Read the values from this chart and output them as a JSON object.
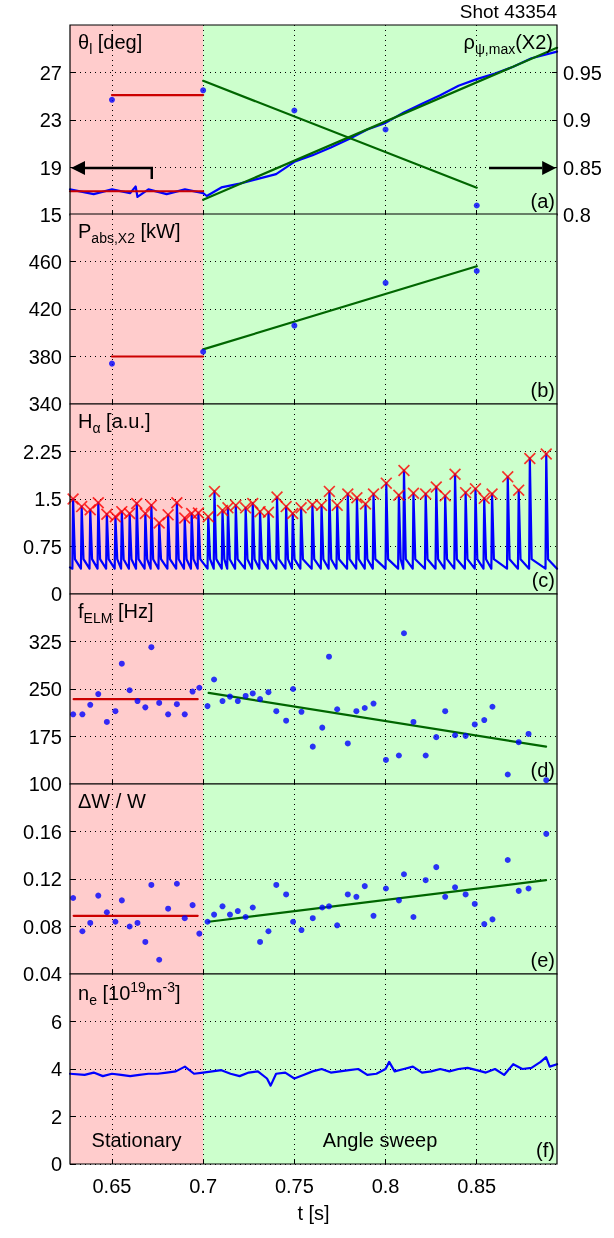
{
  "chart_data": [
    {
      "type": "line",
      "title": "Shot 43354",
      "ylabel": "θ$_{l}$ [deg]",
      "y2label": "ρ$_{ψ,max}$(X2)",
      "xlim": [
        0.627,
        0.894
      ],
      "xticks": [
        0.65,
        0.7,
        0.75,
        0.8,
        0.85
      ],
      "ylim": [
        15,
        31
      ],
      "yticks": [
        15,
        19,
        23,
        27
      ],
      "y2lim": [
        0.8,
        1.0
      ],
      "y2ticks": [
        0.8,
        0.85,
        0.9,
        0.95
      ],
      "grid": true,
      "tick_labels": "y",
      "annotations": [
        "(a)"
      ],
      "bands": [
        {
          "axis": "x",
          "from": 0.627,
          "to": 0.7,
          "color": "#ffcccc"
        },
        {
          "axis": "x",
          "from": 0.7,
          "to": 0.894,
          "color": "#ccffcc"
        }
      ],
      "series": [
        {
          "type": "line",
          "axis": "y2",
          "color": "#0000ff",
          "x": [
            0.627,
            0.64,
            0.65,
            0.66,
            0.663,
            0.664,
            0.67,
            0.68,
            0.69,
            0.7,
            0.702,
            0.71,
            0.72,
            0.73,
            0.74,
            0.75,
            0.76,
            0.77,
            0.78,
            0.79,
            0.8,
            0.81,
            0.82,
            0.83,
            0.84,
            0.85,
            0.86,
            0.87,
            0.88,
            0.894
          ],
          "values": [
            0.827,
            0.822,
            0.827,
            0.823,
            0.83,
            0.819,
            0.827,
            0.822,
            0.827,
            0.823,
            0.82,
            0.829,
            0.833,
            0.838,
            0.843,
            0.856,
            0.863,
            0.871,
            0.88,
            0.89,
            0.897,
            0.908,
            0.917,
            0.926,
            0.936,
            0.943,
            0.949,
            0.956,
            0.965,
            0.972
          ]
        },
        {
          "type": "line",
          "axis": "y2",
          "color": "#cc0000",
          "x": [
            0.627,
            0.7
          ],
          "values": [
            0.825,
            0.825
          ]
        },
        {
          "type": "line",
          "axis": "y2",
          "color": "#006600",
          "x": [
            0.7,
            0.894
          ],
          "values": [
            0.816,
            0.976
          ]
        },
        {
          "type": "line",
          "color": "#cc0000",
          "x": [
            0.65,
            0.7
          ],
          "values": [
            25.1,
            25.1
          ]
        },
        {
          "type": "line",
          "color": "#006600",
          "x": [
            0.7,
            0.85
          ],
          "values": [
            26.3,
            17.3
          ]
        },
        {
          "type": "scatter",
          "marker": "circle",
          "color": "#0000ff",
          "x": [
            0.65,
            0.7,
            0.75,
            0.8,
            0.85
          ],
          "values": [
            24.7,
            25.5,
            23.8,
            22.2,
            15.8
          ]
        }
      ]
    },
    {
      "type": "line",
      "ylabel": "P$_{abs,X2}$ [kW]",
      "xlim": [
        0.627,
        0.894
      ],
      "xticks": [
        0.65,
        0.7,
        0.75,
        0.8,
        0.85
      ],
      "ylim": [
        340,
        500
      ],
      "yticks": [
        340,
        380,
        420,
        460
      ],
      "grid": true,
      "tick_labels": "y",
      "annotations": [
        "(b)"
      ],
      "bands": [
        {
          "axis": "x",
          "from": 0.627,
          "to": 0.7,
          "color": "#ffcccc"
        },
        {
          "axis": "x",
          "from": 0.7,
          "to": 0.894,
          "color": "#ccffcc"
        }
      ],
      "series": [
        {
          "type": "line",
          "color": "#cc0000",
          "x": [
            0.65,
            0.7
          ],
          "values": [
            380,
            380
          ]
        },
        {
          "type": "line",
          "color": "#006600",
          "x": [
            0.7,
            0.85
          ],
          "values": [
            386,
            456
          ]
        },
        {
          "type": "scatter",
          "marker": "circle",
          "color": "#0000ff",
          "x": [
            0.65,
            0.7,
            0.75,
            0.8,
            0.85
          ],
          "values": [
            374,
            384,
            406,
            442,
            452
          ]
        }
      ]
    },
    {
      "type": "line",
      "ylabel": "H$_{α}$ [a.u.]",
      "xlim": [
        0.627,
        0.894
      ],
      "xticks": [
        0.65,
        0.7,
        0.75,
        0.8,
        0.85
      ],
      "ylim": [
        0,
        3
      ],
      "yticks": [
        0,
        0.75,
        1.5,
        2.25
      ],
      "grid": true,
      "tick_labels": "y",
      "annotations": [
        "(c)"
      ],
      "bands": [
        {
          "axis": "x",
          "from": 0.627,
          "to": 0.7,
          "color": "#ffcccc"
        },
        {
          "axis": "x",
          "from": 0.7,
          "to": 0.894,
          "color": "#ccffcc"
        }
      ],
      "series": [
        {
          "type": "line",
          "color": "#0000ff",
          "x": [
            0.627,
            0.6283,
            0.6287,
            0.6297,
            0.633,
            0.6334,
            0.6344,
            0.6377,
            0.6381,
            0.6391,
            0.6421,
            0.6425,
            0.6435,
            0.6468,
            0.6472,
            0.6482,
            0.6515,
            0.6519,
            0.6529,
            0.655,
            0.6554,
            0.6564,
            0.6593,
            0.6597,
            0.6607,
            0.6632,
            0.6636,
            0.6646,
            0.6679,
            0.6683,
            0.6693,
            0.6712,
            0.6716,
            0.6726,
            0.6755,
            0.6759,
            0.6769,
            0.6804,
            0.6808,
            0.6818,
            0.6852,
            0.6856,
            0.6866,
            0.6895,
            0.6899,
            0.6909,
            0.6933,
            0.6937,
            0.6947,
            0.697,
            0.6974,
            0.6984,
            0.7024,
            0.7028,
            0.7038,
            0.7058,
            0.7062,
            0.7072,
            0.7102,
            0.7106,
            0.7116,
            0.7132,
            0.7136,
            0.7146,
            0.7175,
            0.7179,
            0.7189,
            0.7229,
            0.7233,
            0.7243,
            0.7268,
            0.7272,
            0.7282,
            0.7308,
            0.7312,
            0.7322,
            0.7354,
            0.7358,
            0.7368,
            0.7401,
            0.7405,
            0.7415,
            0.7451,
            0.7455,
            0.7465,
            0.7487,
            0.7491,
            0.7501,
            0.7533,
            0.7537,
            0.7547,
            0.7595,
            0.7599,
            0.7609,
            0.7645,
            0.7649,
            0.7659,
            0.7688,
            0.7692,
            0.7702,
            0.7731,
            0.7735,
            0.7745,
            0.7789,
            0.7793,
            0.7803,
            0.7839,
            0.7843,
            0.7853,
            0.7886,
            0.789,
            0.79,
            0.793,
            0.7934,
            0.7944,
            0.8,
            0.8004,
            0.8014,
            0.8069,
            0.8073,
            0.8083,
            0.8097,
            0.8101,
            0.8111,
            0.8149,
            0.8153,
            0.8163,
            0.8216,
            0.822,
            0.823,
            0.8274,
            0.8278,
            0.8288,
            0.8323,
            0.8327,
            0.8337,
            0.8377,
            0.8381,
            0.8391,
            0.8435,
            0.8439,
            0.8449,
            0.8489,
            0.8493,
            0.8503,
            0.8537,
            0.8541,
            0.8551,
            0.858,
            0.8584,
            0.8594,
            0.8666,
            0.867,
            0.868,
            0.8726,
            0.873,
            0.874,
            0.8787,
            0.8791,
            0.8801,
            0.8877,
            0.8881,
            0.8891,
            0.894
          ],
          "values": [
            0.42,
            0.4,
            1.5,
            0.55,
            0.4,
            1.38,
            0.55,
            0.4,
            1.33,
            0.55,
            0.4,
            1.44,
            0.55,
            0.4,
            1.26,
            0.55,
            0.4,
            1.22,
            0.55,
            0.4,
            1.3,
            0.55,
            0.4,
            1.27,
            0.55,
            0.4,
            1.43,
            0.55,
            0.4,
            1.27,
            0.55,
            0.4,
            1.4,
            0.55,
            0.4,
            1.12,
            0.55,
            0.4,
            1.25,
            0.55,
            0.4,
            1.44,
            0.55,
            0.4,
            1.2,
            0.55,
            0.4,
            1.27,
            0.55,
            0.4,
            1.28,
            0.55,
            0.4,
            1.22,
            0.55,
            0.4,
            1.62,
            0.55,
            0.4,
            1.32,
            0.55,
            0.4,
            1.36,
            0.55,
            0.4,
            1.4,
            0.55,
            0.4,
            1.36,
            0.55,
            0.4,
            1.43,
            0.55,
            0.4,
            1.3,
            0.55,
            0.4,
            1.29,
            0.55,
            0.4,
            1.53,
            0.55,
            0.4,
            1.38,
            0.55,
            0.4,
            1.27,
            0.55,
            0.4,
            1.36,
            0.55,
            0.4,
            1.41,
            0.55,
            0.4,
            1.4,
            0.55,
            0.4,
            1.62,
            0.55,
            0.4,
            1.4,
            0.55,
            0.4,
            1.58,
            0.55,
            0.4,
            1.52,
            0.55,
            0.4,
            1.42,
            0.55,
            0.4,
            1.58,
            0.55,
            0.4,
            1.75,
            0.55,
            0.4,
            1.56,
            0.55,
            0.4,
            1.95,
            0.55,
            0.4,
            1.59,
            0.55,
            0.4,
            1.58,
            0.55,
            0.4,
            1.69,
            0.55,
            0.4,
            1.55,
            0.55,
            0.4,
            1.89,
            0.55,
            0.4,
            1.6,
            0.55,
            0.4,
            1.66,
            0.55,
            0.4,
            1.51,
            0.55,
            0.4,
            1.58,
            0.55,
            0.4,
            1.85,
            0.55,
            0.4,
            1.64,
            0.55,
            0.4,
            2.14,
            0.55,
            0.4,
            2.21,
            0.55,
            0.4
          ]
        },
        {
          "type": "scatter",
          "marker": "cross",
          "color": "#ff0000",
          "x": [
            0.6287,
            0.6334,
            0.6381,
            0.6425,
            0.6472,
            0.6519,
            0.6554,
            0.6597,
            0.6636,
            0.6683,
            0.6716,
            0.6759,
            0.6808,
            0.6856,
            0.6899,
            0.6937,
            0.6974,
            0.7028,
            0.7062,
            0.7106,
            0.7136,
            0.7179,
            0.7233,
            0.7272,
            0.7312,
            0.7358,
            0.7405,
            0.7455,
            0.7491,
            0.7537,
            0.7599,
            0.7649,
            0.7692,
            0.7735,
            0.7793,
            0.7843,
            0.789,
            0.7934,
            0.8004,
            0.8073,
            0.8101,
            0.8153,
            0.822,
            0.8278,
            0.8327,
            0.8381,
            0.8439,
            0.8493,
            0.8541,
            0.8584,
            0.867,
            0.873,
            0.8791,
            0.8881
          ],
          "values": [
            1.5,
            1.38,
            1.33,
            1.44,
            1.26,
            1.22,
            1.3,
            1.27,
            1.43,
            1.27,
            1.4,
            1.12,
            1.25,
            1.44,
            1.2,
            1.27,
            1.28,
            1.22,
            1.62,
            1.32,
            1.36,
            1.4,
            1.36,
            1.43,
            1.3,
            1.29,
            1.53,
            1.38,
            1.27,
            1.36,
            1.41,
            1.4,
            1.62,
            1.4,
            1.58,
            1.52,
            1.42,
            1.58,
            1.75,
            1.56,
            1.95,
            1.59,
            1.58,
            1.69,
            1.55,
            1.89,
            1.6,
            1.66,
            1.51,
            1.58,
            1.85,
            1.64,
            2.14,
            2.21
          ]
        }
      ]
    },
    {
      "type": "line",
      "ylabel": "f$_{ELM}$ [Hz]",
      "xlim": [
        0.627,
        0.894
      ],
      "xticks": [
        0.65,
        0.7,
        0.75,
        0.8,
        0.85
      ],
      "ylim": [
        100,
        400
      ],
      "yticks": [
        100,
        175,
        250,
        325
      ],
      "grid": true,
      "tick_labels": "y",
      "annotations": [
        "(d)"
      ],
      "bands": [
        {
          "axis": "x",
          "from": 0.627,
          "to": 0.7,
          "color": "#ffcccc"
        },
        {
          "axis": "x",
          "from": 0.7,
          "to": 0.894,
          "color": "#ccffcc"
        }
      ],
      "series": [
        {
          "type": "line",
          "color": "#cc0000",
          "x": [
            0.629,
            0.697
          ],
          "values": [
            234,
            234
          ]
        },
        {
          "type": "line",
          "color": "#006600",
          "x": [
            0.703,
            0.888
          ],
          "values": [
            244,
            159
          ]
        },
        {
          "type": "scatter",
          "marker": "circle",
          "color": "#0000ff",
          "x": [
            0.6287,
            0.6338,
            0.6381,
            0.6425,
            0.6472,
            0.6519,
            0.6554,
            0.6597,
            0.664,
            0.6683,
            0.6716,
            0.6759,
            0.6808,
            0.6856,
            0.6899,
            0.6942,
            0.6979,
            0.7024,
            0.706,
            0.7106,
            0.7147,
            0.719,
            0.7233,
            0.7272,
            0.7312,
            0.7358,
            0.7401,
            0.7455,
            0.7493,
            0.7539,
            0.7601,
            0.7653,
            0.769,
            0.7735,
            0.7793,
            0.784,
            0.7886,
            0.7934,
            0.8002,
            0.8073,
            0.8101,
            0.8153,
            0.822,
            0.8278,
            0.8327,
            0.8381,
            0.8439,
            0.8489,
            0.8541,
            0.8586,
            0.867,
            0.873,
            0.8784,
            0.8881
          ],
          "values": [
            210,
            210,
            225,
            242,
            198,
            215,
            290,
            248,
            231,
            221,
            316,
            228,
            210,
            226,
            210,
            246,
            252,
            223,
            265,
            231,
            238,
            231,
            239,
            243,
            234,
            245,
            215,
            200,
            250,
            214,
            159,
            189,
            301,
            218,
            164,
            215,
            220,
            227,
            138,
            145,
            338,
            198,
            145,
            174,
            215,
            177,
            176,
            194,
            201,
            222,
            115,
            166,
            179,
            106
          ]
        }
      ]
    },
    {
      "type": "line",
      "ylabel": "ΔW / W",
      "xlim": [
        0.627,
        0.894
      ],
      "xticks": [
        0.65,
        0.7,
        0.75,
        0.8,
        0.85
      ],
      "ylim": [
        0.04,
        0.2
      ],
      "yticks": [
        0.04,
        0.08,
        0.12,
        0.16
      ],
      "grid": true,
      "tick_labels": "y",
      "annotations": [
        "(e)"
      ],
      "bands": [
        {
          "axis": "x",
          "from": 0.627,
          "to": 0.7,
          "color": "#ffcccc"
        },
        {
          "axis": "x",
          "from": 0.7,
          "to": 0.894,
          "color": "#ccffcc"
        }
      ],
      "series": [
        {
          "type": "line",
          "color": "#cc0000",
          "x": [
            0.629,
            0.697
          ],
          "values": [
            0.089,
            0.089
          ]
        },
        {
          "type": "line",
          "color": "#006600",
          "x": [
            0.703,
            0.888
          ],
          "values": [
            0.084,
            0.119
          ]
        },
        {
          "type": "scatter",
          "marker": "circle",
          "color": "#0000ff",
          "x": [
            0.6287,
            0.6338,
            0.6381,
            0.6425,
            0.6472,
            0.6519,
            0.6554,
            0.6597,
            0.664,
            0.6683,
            0.6716,
            0.6759,
            0.6808,
            0.6856,
            0.6899,
            0.6942,
            0.6979,
            0.7024,
            0.706,
            0.7106,
            0.7147,
            0.719,
            0.7233,
            0.7272,
            0.7312,
            0.7358,
            0.7401,
            0.7455,
            0.7493,
            0.7539,
            0.7601,
            0.7653,
            0.769,
            0.7735,
            0.7793,
            0.784,
            0.7886,
            0.7934,
            0.8002,
            0.8073,
            0.8101,
            0.8153,
            0.822,
            0.8278,
            0.8327,
            0.8381,
            0.8439,
            0.8489,
            0.8541,
            0.8586,
            0.867,
            0.873,
            0.8784,
            0.8881
          ],
          "values": [
            0.104,
            0.076,
            0.083,
            0.106,
            0.092,
            0.084,
            0.102,
            0.08,
            0.083,
            0.067,
            0.115,
            0.052,
            0.095,
            0.116,
            0.087,
            0.098,
            0.074,
            0.084,
            0.09,
            0.097,
            0.09,
            0.093,
            0.088,
            0.096,
            0.067,
            0.076,
            0.115,
            0.107,
            0.084,
            0.077,
            0.087,
            0.096,
            0.097,
            0.081,
            0.107,
            0.105,
            0.114,
            0.089,
            0.112,
            0.102,
            0.124,
            0.088,
            0.119,
            0.13,
            0.105,
            0.113,
            0.107,
            0.099,
            0.082,
            0.086,
            0.136,
            0.11,
            0.112,
            0.158
          ]
        }
      ]
    },
    {
      "type": "line",
      "ylabel": "n$_{e}$ [10$^{19}$m$^{-3}$]",
      "xlabel": "t [s]",
      "xlim": [
        0.627,
        0.894
      ],
      "xticks": [
        0.65,
        0.7,
        0.75,
        0.8,
        0.85
      ],
      "ylim": [
        0,
        8
      ],
      "yticks": [
        0,
        2,
        4,
        6
      ],
      "grid": true,
      "annotations": [
        "(f)"
      ],
      "bands": [
        {
          "axis": "x",
          "from": 0.627,
          "to": 0.7,
          "color": "#ffcccc",
          "label": "Stationary"
        },
        {
          "axis": "x",
          "from": 0.7,
          "to": 0.894,
          "color": "#ccffcc",
          "label": "Angle sweep"
        }
      ],
      "series": [
        {
          "type": "line",
          "color": "#0000ff",
          "x": [
            0.627,
            0.635,
            0.64,
            0.645,
            0.65,
            0.655,
            0.66,
            0.665,
            0.67,
            0.675,
            0.68,
            0.685,
            0.69,
            0.695,
            0.7,
            0.705,
            0.71,
            0.715,
            0.72,
            0.725,
            0.73,
            0.735,
            0.737,
            0.74,
            0.745,
            0.75,
            0.755,
            0.76,
            0.765,
            0.77,
            0.775,
            0.78,
            0.785,
            0.79,
            0.795,
            0.8,
            0.802,
            0.805,
            0.81,
            0.815,
            0.82,
            0.825,
            0.83,
            0.835,
            0.84,
            0.845,
            0.85,
            0.855,
            0.86,
            0.865,
            0.87,
            0.875,
            0.88,
            0.885,
            0.888,
            0.89,
            0.894
          ],
          "values": [
            3.8,
            3.75,
            3.85,
            3.7,
            3.8,
            3.75,
            3.7,
            3.75,
            3.8,
            3.8,
            3.85,
            3.9,
            4.1,
            3.8,
            3.85,
            3.9,
            3.95,
            3.8,
            3.7,
            3.85,
            3.9,
            3.6,
            3.3,
            3.8,
            3.85,
            3.6,
            3.75,
            3.9,
            4.0,
            3.85,
            3.9,
            3.95,
            4.0,
            3.75,
            3.8,
            4.0,
            4.3,
            3.9,
            4.0,
            4.1,
            3.85,
            3.9,
            4.0,
            3.9,
            4.0,
            4.05,
            3.95,
            3.85,
            4.0,
            3.75,
            4.2,
            4.0,
            4.05,
            4.3,
            4.5,
            4.1,
            4.2
          ]
        }
      ]
    }
  ]
}
